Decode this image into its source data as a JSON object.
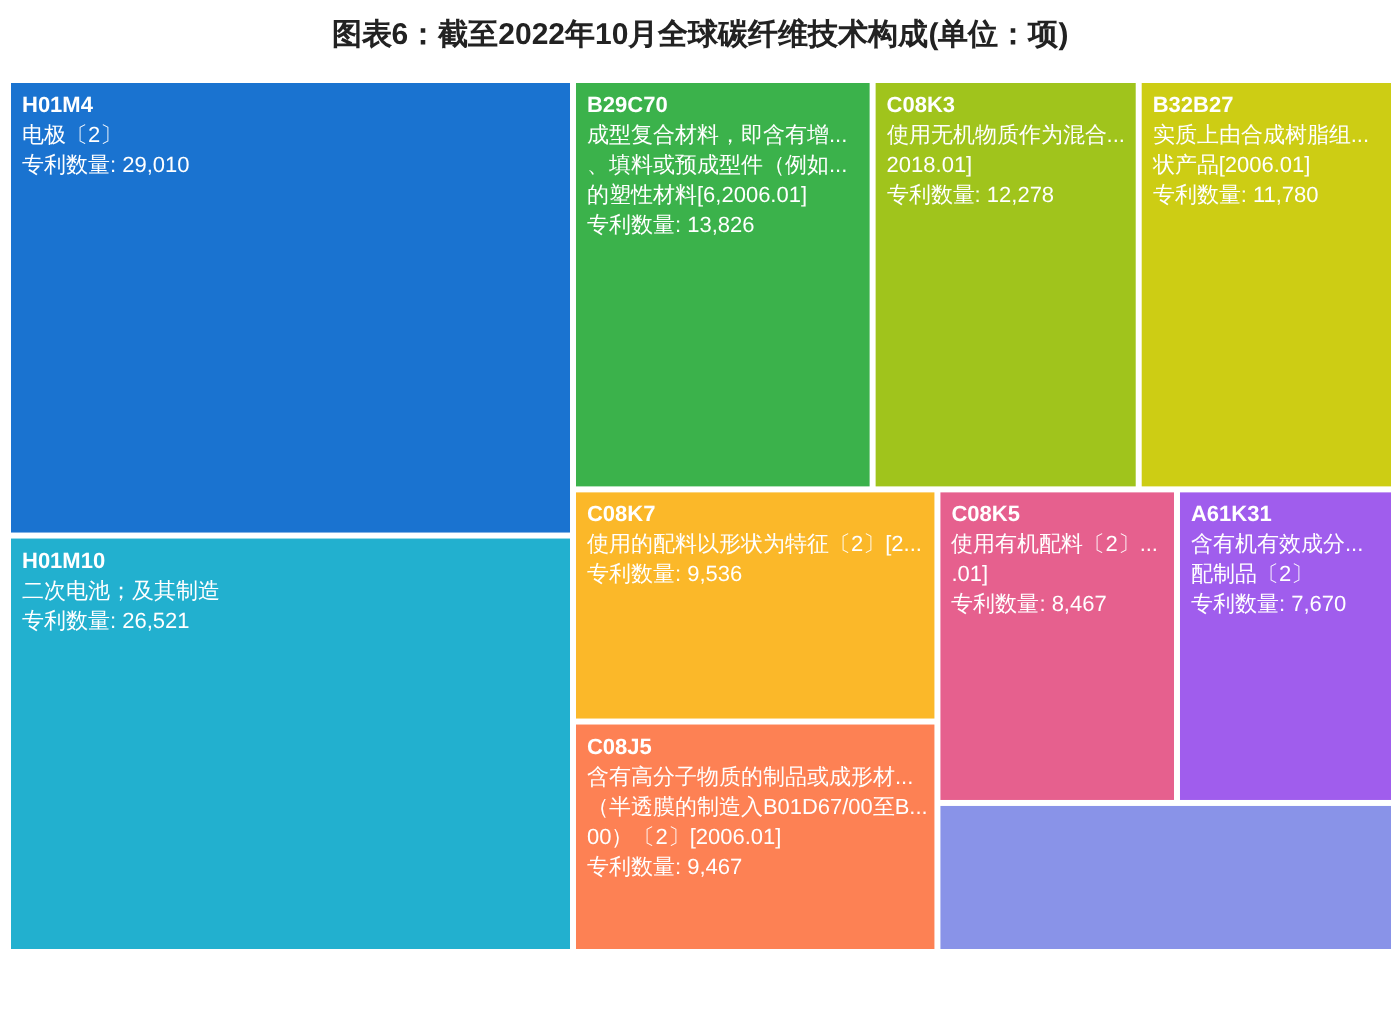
{
  "chart_data": {
    "type": "other",
    "title": "图表6：截至2022年10月全球碳纤维技术构成(单位：项)",
    "categories": [
      "H01M4",
      "H01M10",
      "B29C70",
      "C08K3",
      "B32B27",
      "C08K7",
      "C08J5",
      "C08K5",
      "A61K31",
      null
    ],
    "values": [
      29010,
      26521,
      13826,
      12278,
      11780,
      9536,
      9467,
      8467,
      7670,
      null
    ],
    "value_labels": [
      "专利数量: 29,010",
      "专利数量: 26,521",
      "专利数量: 13,826",
      "专利数量: 12,278",
      "专利数量: 11,780",
      "专利数量: 9,536",
      "专利数量: 9,467",
      "专利数量: 8,467",
      "专利数量: 7,670",
      null
    ],
    "cell_labels": [
      [
        "电极〔2〕"
      ],
      [
        "二次电池；及其制造"
      ],
      [
        "成型复合材料，即含有增...",
        "、填料或预成型件（例如...",
        "的塑性材料[6,2006.01]"
      ],
      [
        "使用无机物质作为混合...",
        "2018.01]"
      ],
      [
        "实质上由合成树脂组...",
        "状产品[2006.01]"
      ],
      [
        "使用的配料以形状为特征〔2〕[2..."
      ],
      [
        "含有高分子物质的制品或成形材...",
        "（半透膜的制造入B01D67/00至B...",
        "00）〔2〕[2006.01]"
      ],
      [
        "使用有机配料〔2〕...",
        ".01]"
      ],
      [
        "含有机有效成分...",
        "配制品〔2〕"
      ],
      null
    ],
    "colors": [
      "#1a73d0",
      "#22b0cf",
      "#3bb24b",
      "#a0c41c",
      "#cdcd14",
      "#fbb829",
      "#fd8154",
      "#e6608e",
      "#a05ded",
      "#8993e8"
    ]
  }
}
